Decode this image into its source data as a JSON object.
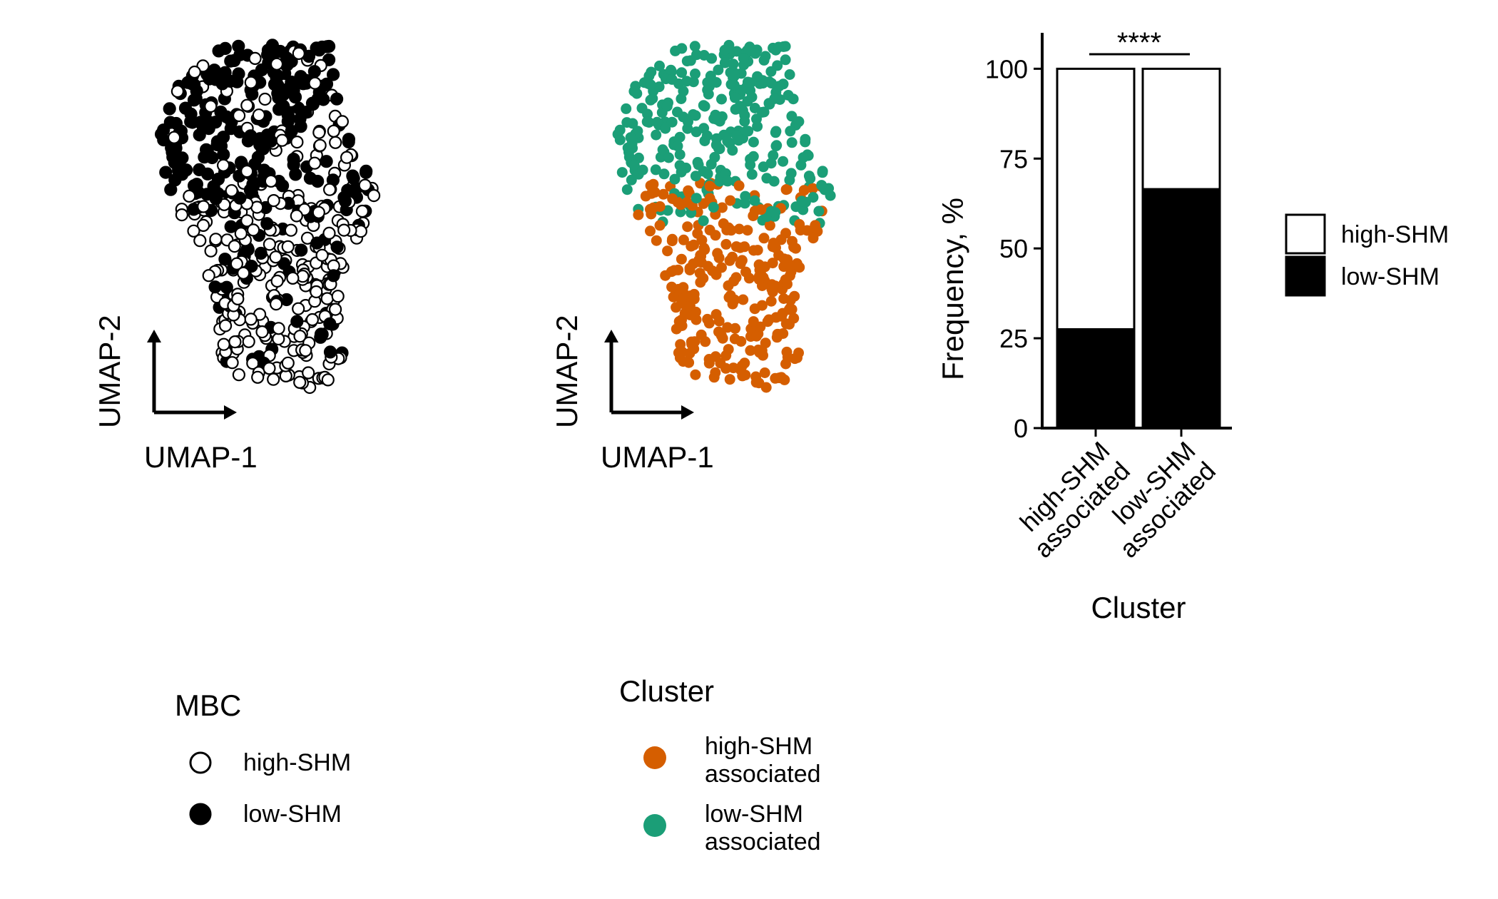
{
  "chart_data": [
    {
      "type": "scatter",
      "panel": "umap-mbc",
      "xlabel": "UMAP-1",
      "ylabel": "UMAP-2",
      "legend": {
        "title": "MBC",
        "placement": "bottom-left",
        "entries": [
          {
            "label": "high-SHM",
            "fill": "#ffffff",
            "stroke": "#000000"
          },
          {
            "label": "low-SHM",
            "fill": "#000000",
            "stroke": "#000000"
          }
        ]
      },
      "series": [
        {
          "name": "high-SHM",
          "fill": "#ffffff",
          "stroke": "#000000",
          "points": []
        },
        {
          "name": "low-SHM",
          "fill": "#000000",
          "stroke": "#000000",
          "points": []
        }
      ]
    },
    {
      "type": "scatter",
      "panel": "umap-cluster",
      "xlabel": "UMAP-1",
      "ylabel": "UMAP-2",
      "legend": {
        "title": "Cluster",
        "placement": "bottom-left",
        "entries": [
          {
            "label_line1": "high-SHM",
            "label_line2": "associated",
            "fill": "#D55E00"
          },
          {
            "label_line1": "low-SHM",
            "label_line2": "associated",
            "fill": "#1B9E77"
          }
        ]
      },
      "series": [
        {
          "name": "high-SHM associated",
          "fill": "#D55E00",
          "points": []
        },
        {
          "name": "low-SHM associated",
          "fill": "#1B9E77",
          "points": []
        }
      ]
    },
    {
      "type": "bar",
      "stacked": true,
      "panel": "frequency",
      "xlabel": "Cluster",
      "ylabel": "Frequency, %",
      "ylim": [
        0,
        110
      ],
      "yticks": [
        "0",
        "25",
        "50",
        "75",
        "100"
      ],
      "categories": [
        {
          "line1": "high-SHM",
          "line2": "associated"
        },
        {
          "line1": "low-SHM",
          "line2": "associated"
        }
      ],
      "series": [
        {
          "name": "low-SHM",
          "fill": "#000000",
          "values": [
            27.5,
            66.5
          ]
        },
        {
          "name": "high-SHM",
          "fill": "#ffffff",
          "values": [
            72.5,
            33.5
          ]
        }
      ],
      "significance": "****",
      "legend": {
        "placement": "right",
        "entries": [
          {
            "label": "high-SHM",
            "fill": "#ffffff"
          },
          {
            "label": "low-SHM",
            "fill": "#000000"
          }
        ]
      }
    }
  ]
}
